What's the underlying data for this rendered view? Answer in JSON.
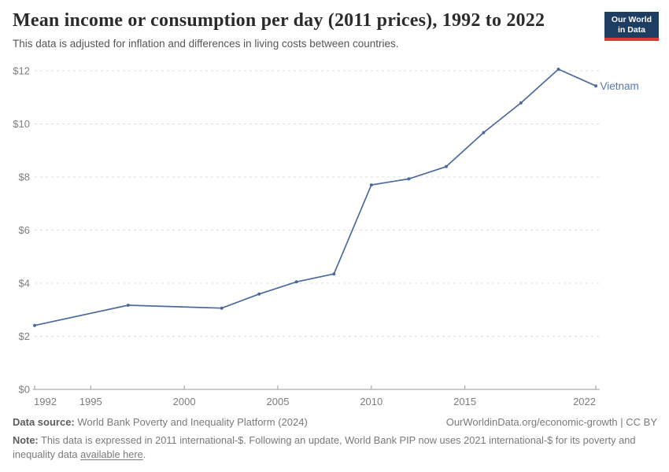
{
  "header": {
    "title": "Mean income or consumption per day (2011 prices), 1992 to 2022",
    "subtitle": "This data is adjusted for inflation and differences in living costs between countries.",
    "logo_line1": "Our World",
    "logo_line2": "in Data",
    "logo_bg_color": "#1d3d63",
    "logo_bar_color": "#dc3a34"
  },
  "chart_data": {
    "type": "line",
    "title": "Mean income or consumption per day (2011 prices), 1992 to 2022",
    "series": [
      {
        "name": "Vietnam",
        "x": [
          1992,
          1997,
          2002,
          2004,
          2006,
          2008,
          2010,
          2012,
          2014,
          2016,
          2018,
          2020,
          2022
        ],
        "values": [
          2.41,
          3.17,
          3.06,
          3.59,
          4.05,
          4.35,
          7.7,
          7.93,
          8.39,
          9.67,
          10.79,
          12.06,
          11.43
        ]
      }
    ],
    "end_label": "Vietnam",
    "xlim": [
      1992,
      2022
    ],
    "ylim": [
      0,
      12
    ],
    "x_ticks": [
      1992,
      1995,
      2000,
      2005,
      2010,
      2015,
      2022
    ],
    "y_ticks": [
      0,
      2,
      4,
      6,
      8,
      10,
      12
    ],
    "y_tick_prefix": "$",
    "grid": "horizontal-dashed",
    "legend_position": "end-of-line",
    "line_color": "#4c6a9c",
    "label_color": "#5878ab",
    "grid_color": "#dcdcdc",
    "axis_color": "#9a9a9a",
    "tick_label_color": "#7d7d7d"
  },
  "footer": {
    "source_label": "Data source:",
    "source_text": " World Bank Poverty and Inequality Platform (2024)",
    "right_text": "OurWorldinData.org/economic-growth | CC BY",
    "note_label": "Note:",
    "note_text": " This data is expressed in 2011 international-$. Following an update, World Bank PIP now uses 2021 international-$ for its poverty and inequality data ",
    "note_link": "available here",
    "note_suffix": "."
  }
}
